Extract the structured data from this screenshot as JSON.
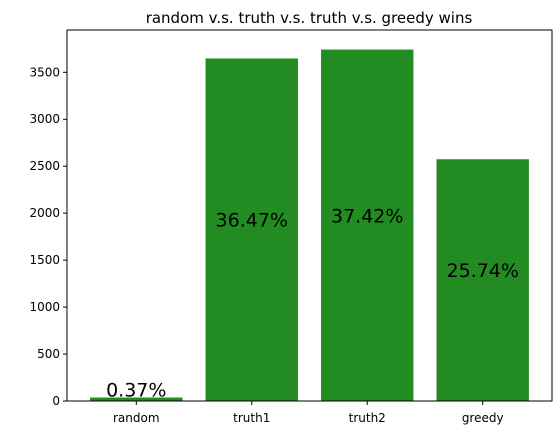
{
  "chart_data": {
    "type": "bar",
    "title": "random v.s. truth v.s. truth v.s. greedy wins",
    "categories": [
      "random",
      "truth1",
      "truth2",
      "greedy"
    ],
    "values": [
      37,
      3647,
      3742,
      2574
    ],
    "value_labels": [
      "0.37%",
      "36.47%",
      "37.42%",
      "25.74%"
    ],
    "color": "#228b22",
    "ylim": [
      0,
      3929
    ],
    "yticks": [
      0,
      500,
      1000,
      1500,
      2000,
      2500,
      3000,
      3500
    ],
    "grid": false
  }
}
